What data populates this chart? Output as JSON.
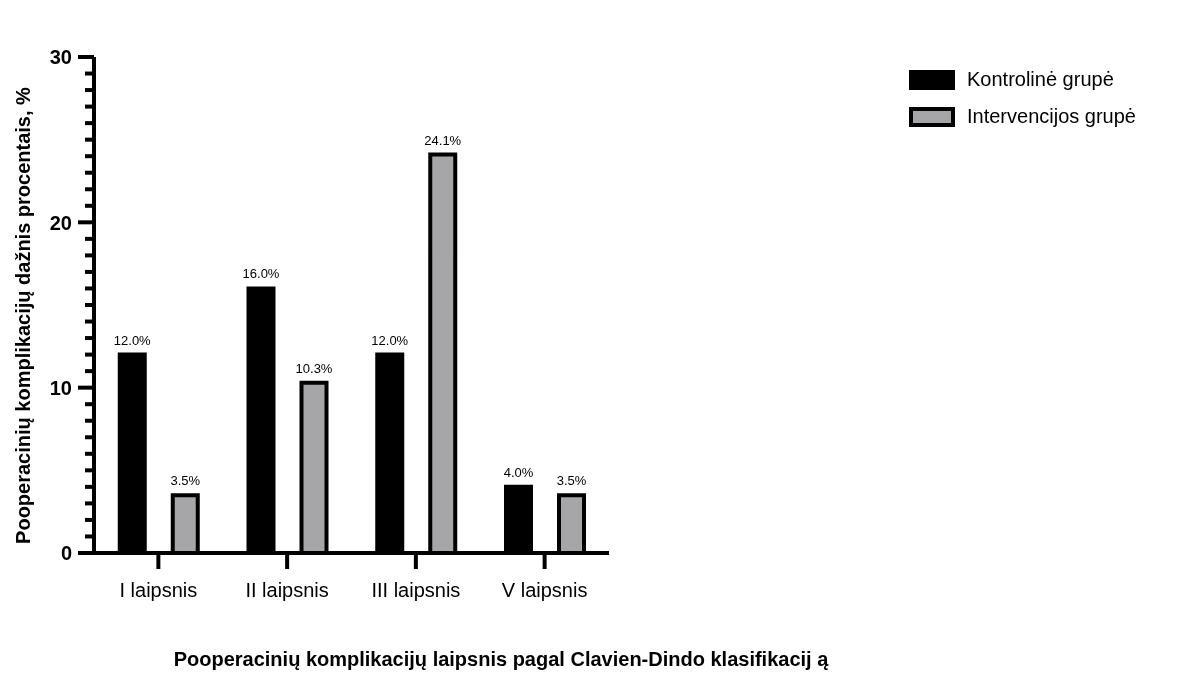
{
  "chart_data": {
    "type": "bar",
    "xlabel": "Pooperacinių komplikacijų laipsnis pagal Clavien-Dindo klasifikacij ą",
    "ylabel": "Pooperacinių komplikacijų dažnis procentais, %",
    "categories": [
      "I laipsnis",
      "II laipsnis",
      "III laipsnis",
      "V laipsnis"
    ],
    "series": [
      {
        "name": "Kontrolinė grupė",
        "color": "#000000",
        "values": [
          12.0,
          16.0,
          12.0,
          4.0
        ],
        "value_labels": [
          "12.0%",
          "16.0%",
          "12.0%",
          "4.0%"
        ]
      },
      {
        "name": "Intervencijos grupė",
        "color": "#a6a6a8",
        "values": [
          3.5,
          10.3,
          24.1,
          3.5
        ],
        "value_labels": [
          "3.5%",
          "10.3%",
          "24.1%",
          "3.5%"
        ]
      }
    ],
    "ylim": [
      0,
      30
    ],
    "yticks": [
      0,
      {
        "value": 1,
        "label": null
      },
      {
        "value": 2,
        "label": null
      },
      {
        "value": 3,
        "label": null
      },
      {
        "value": 4,
        "label": null
      },
      {
        "value": 5,
        "label": null
      },
      {
        "value": 6,
        "label": null
      },
      {
        "value": 7,
        "label": null
      },
      {
        "value": 8,
        "label": null
      },
      {
        "value": 9,
        "label": null
      },
      10,
      {
        "value": 11,
        "label": null
      },
      {
        "value": 12,
        "label": null
      },
      {
        "value": 13,
        "label": null
      },
      {
        "value": 14,
        "label": null
      },
      {
        "value": 15,
        "label": null
      },
      {
        "value": 16,
        "label": null
      },
      {
        "value": 17,
        "label": null
      },
      {
        "value": 18,
        "label": null
      },
      {
        "value": 19,
        "label": null
      },
      20,
      {
        "value": 21,
        "label": null
      },
      {
        "value": 22,
        "label": null
      },
      {
        "value": 23,
        "label": null
      },
      {
        "value": 24,
        "label": null
      },
      {
        "value": 25,
        "label": null
      },
      {
        "value": 26,
        "label": null
      },
      {
        "value": 27,
        "label": null
      },
      {
        "value": 28,
        "label": null
      },
      {
        "value": 29,
        "label": null
      },
      30
    ],
    "grid": false,
    "legend": "top right"
  }
}
